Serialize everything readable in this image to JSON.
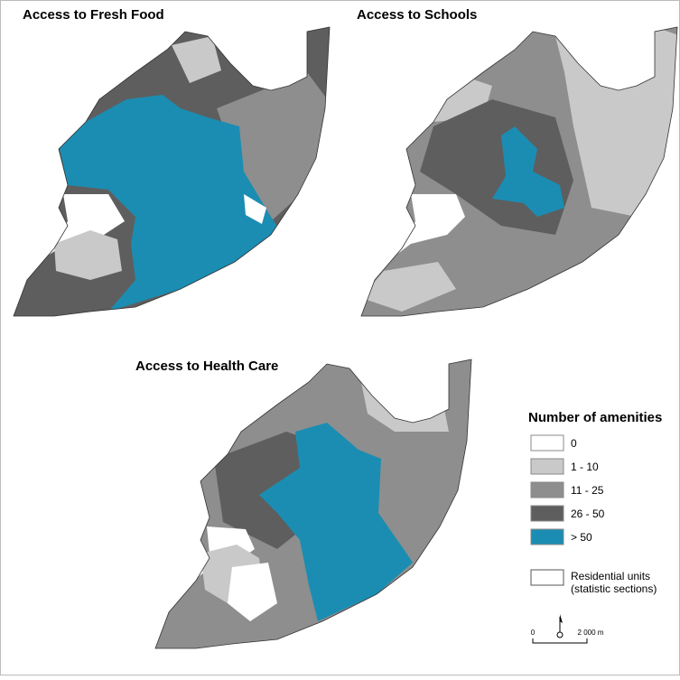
{
  "titles": [
    "Access to Fresh Food",
    "Access to Schools",
    "Access to Health Care"
  ],
  "legend": {
    "title": "Number of amenities",
    "items": [
      {
        "label": "0",
        "color": "#ffffff"
      },
      {
        "label": "1 - 10",
        "color": "#c9c9c9"
      },
      {
        "label": "11 - 25",
        "color": "#8e8e8e"
      },
      {
        "label": "26 - 50",
        "color": "#5e5e5e"
      },
      {
        "label": "> 50",
        "color": "#1b8db2"
      }
    ],
    "residential": {
      "lines": [
        "Residential units",
        "(statistic sections)"
      ]
    }
  },
  "scale": {
    "labels": [
      "0",
      "2 000 m"
    ]
  }
}
